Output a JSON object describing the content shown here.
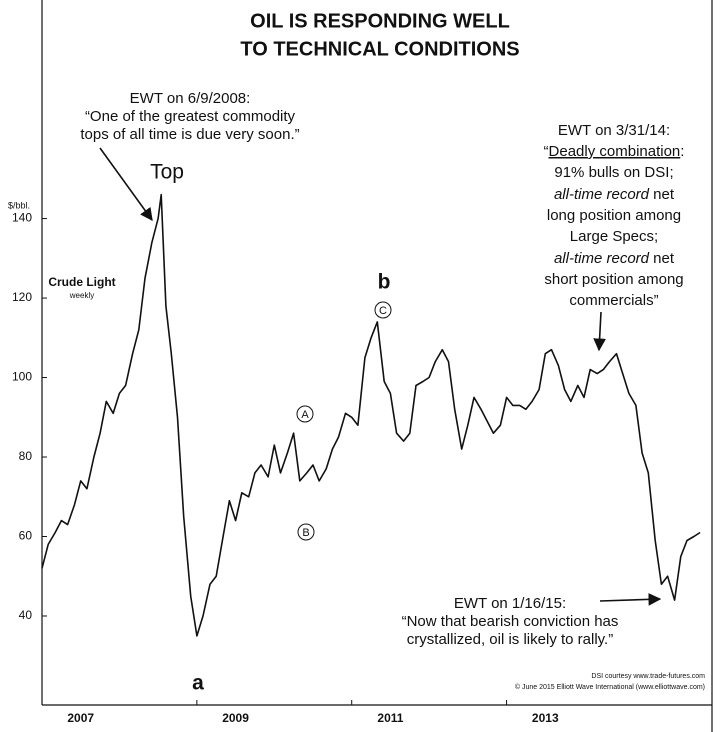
{
  "chart_data": {
    "type": "line",
    "title": [
      "OIL IS RESPONDING WELL",
      "TO TECHNICAL CONDITIONS"
    ],
    "y_unit": "$/bbl.",
    "series_label": "Crude Light",
    "series_sublabel": "weekly",
    "x": [
      2007.0,
      2007.08,
      2007.17,
      2007.25,
      2007.33,
      2007.42,
      2007.5,
      2007.58,
      2007.67,
      2007.75,
      2007.83,
      2007.92,
      2008.0,
      2008.08,
      2008.17,
      2008.25,
      2008.33,
      2008.42,
      2008.5,
      2008.54,
      2008.6,
      2008.67,
      2008.75,
      2008.83,
      2008.92,
      2009.0,
      2009.08,
      2009.17,
      2009.25,
      2009.33,
      2009.42,
      2009.5,
      2009.58,
      2009.67,
      2009.75,
      2009.83,
      2009.92,
      2010.0,
      2010.08,
      2010.17,
      2010.25,
      2010.33,
      2010.42,
      2010.5,
      2010.58,
      2010.67,
      2010.75,
      2010.83,
      2010.92,
      2011.0,
      2011.08,
      2011.17,
      2011.25,
      2011.33,
      2011.42,
      2011.5,
      2011.58,
      2011.67,
      2011.75,
      2011.83,
      2011.92,
      2012.0,
      2012.08,
      2012.17,
      2012.25,
      2012.33,
      2012.42,
      2012.5,
      2012.58,
      2012.67,
      2012.75,
      2012.83,
      2012.92,
      2013.0,
      2013.08,
      2013.17,
      2013.25,
      2013.33,
      2013.42,
      2013.5,
      2013.58,
      2013.67,
      2013.75,
      2013.83,
      2013.92,
      2014.0,
      2014.08,
      2014.17,
      2014.25,
      2014.33,
      2014.42,
      2014.5,
      2014.58,
      2014.67,
      2014.75,
      2014.83,
      2014.92,
      2015.0,
      2015.08,
      2015.17,
      2015.25,
      2015.33,
      2015.42,
      2015.5
    ],
    "series": [
      {
        "name": "Crude Light",
        "color": "#111111",
        "values": [
          52,
          58,
          61,
          64,
          63,
          68,
          74,
          72,
          80,
          86,
          94,
          91,
          96,
          98,
          106,
          112,
          125,
          134,
          140,
          146,
          118,
          106,
          90,
          65,
          45,
          35,
          40,
          48,
          50,
          59,
          69,
          64,
          71,
          70,
          76,
          78,
          75,
          83,
          76,
          81,
          86,
          74,
          76,
          78,
          74,
          77,
          82,
          85,
          91,
          90,
          88,
          105,
          110,
          114,
          99,
          96,
          86,
          84,
          86,
          98,
          99,
          100,
          104,
          107,
          104,
          92,
          82,
          88,
          95,
          92,
          89,
          86,
          88,
          95,
          93,
          93,
          92,
          94,
          97,
          106,
          107,
          103,
          97,
          94,
          98,
          95,
          102,
          101,
          102,
          104,
          106,
          101,
          96,
          93,
          81,
          76,
          59,
          48,
          50,
          44,
          55,
          59,
          60,
          61
        ]
      }
    ],
    "xlim": [
      2007,
      2015.55
    ],
    "xticks": [
      {
        "value": 2007,
        "label": "2007"
      },
      {
        "value": 2009,
        "label": "2009"
      },
      {
        "value": 2011,
        "label": "2011"
      },
      {
        "value": 2013,
        "label": "2013"
      }
    ],
    "ylim": [
      17.6,
      195
    ],
    "yticks": [
      40,
      60,
      80,
      100,
      120,
      140
    ],
    "grid": false,
    "wave_labels": [
      "Top",
      "a",
      "b",
      "A",
      "B",
      "C"
    ],
    "annotations": [
      {
        "lines": [
          "EWT on 6/9/2008:",
          "“One of the greatest commodity",
          "tops of all time is due very soon.”"
        ]
      },
      {
        "lines": [
          "EWT on 3/31/14:",
          [
            "“",
            "Deadly combination",
            ":"
          ],
          "91% bulls on DSI;",
          [
            "all-time record",
            " net"
          ],
          "long position among",
          "Large Specs;",
          [
            "all-time record",
            " net"
          ],
          "short position among",
          "commercials”"
        ]
      },
      {
        "lines": [
          "EWT on 1/16/15:",
          "“Now that bearish conviction has",
          "crystallized, oil is likely to rally.”"
        ]
      }
    ],
    "credits": [
      "DSI courtesy www.trade-futures.com",
      "© June 2015 Elliott Wave International (www.elliottwave.com)"
    ]
  }
}
